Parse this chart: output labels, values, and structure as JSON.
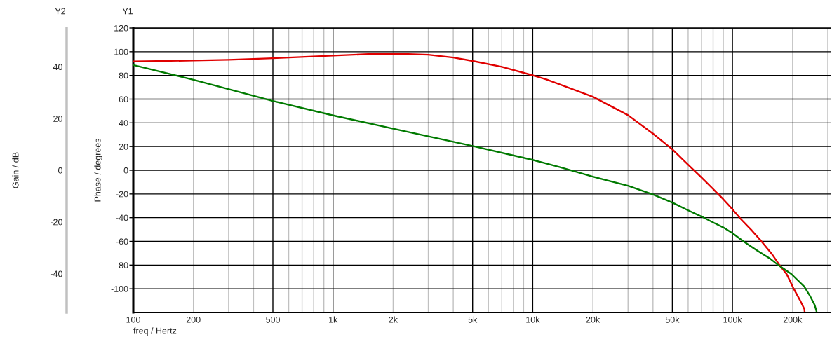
{
  "chart_data": {
    "type": "line",
    "xlabel": "freq / Hertz",
    "ylabel": "Phase / degrees",
    "y2label": "Gain / dB",
    "annotations": [
      "Y2",
      "Y1"
    ],
    "log": "x",
    "grid": true,
    "xlim": [
      100,
      310000
    ],
    "xticks": [
      100,
      200,
      500,
      {
        "value": 1000,
        "label": "1k"
      },
      {
        "value": 2000,
        "label": "2k"
      },
      {
        "value": 5000,
        "label": "5k"
      },
      {
        "value": 10000,
        "label": "10k"
      },
      {
        "value": 20000,
        "label": "20k"
      },
      {
        "value": 50000,
        "label": "50k"
      },
      {
        "value": 100000,
        "label": "100k"
      },
      {
        "value": 200000,
        "label": "200k"
      }
    ],
    "ylim": [
      -120,
      120
    ],
    "yticks": [
      -100,
      -80,
      -60,
      -40,
      -20,
      0,
      20,
      40,
      60,
      80,
      100,
      120
    ],
    "y2lim": [
      -55,
      55
    ],
    "y2ticks": [
      -40,
      -20,
      0,
      20,
      40
    ],
    "series": [
      {
        "color": "#e00000",
        "x": [
          100,
          200,
          300,
          500,
          1000,
          1500,
          2000,
          3000,
          4000,
          5000,
          7000,
          10000,
          11700,
          13700,
          20000,
          30000,
          40000,
          50000,
          60000,
          70000,
          80000,
          90000,
          100000,
          110000,
          125000,
          139000,
          157000,
          172000,
          187000,
          202000,
          217000,
          229000,
          230000
        ],
        "values": [
          91.8,
          92.6,
          93.2,
          94.5,
          96.7,
          98.0,
          98.4,
          97.5,
          95.1,
          92.2,
          87.3,
          80.1,
          76.6,
          72.4,
          62.0,
          46.5,
          30.9,
          17.7,
          4.7,
          -6.1,
          -15.8,
          -24.5,
          -32.9,
          -41.1,
          -50.8,
          -59.5,
          -70.3,
          -80.0,
          -87.8,
          -99.5,
          -109.1,
          -117.0,
          -120
        ]
      },
      {
        "color": "#007a00",
        "axis": "y2",
        "x": [
          100,
          200,
          500,
          1000,
          2000,
          5000,
          10000,
          11700,
          13700,
          20000,
          30000,
          40000,
          50000,
          60000,
          70000,
          81000,
          90000,
          100000,
          113500,
          131600,
          155000,
          172000,
          197000,
          229000,
          244000,
          258000,
          264000
        ],
        "values": [
          40.7,
          35.0,
          26.8,
          21.2,
          16.1,
          9.4,
          4.0,
          2.6,
          1.2,
          -2.5,
          -6.0,
          -9.4,
          -12.5,
          -15.5,
          -17.9,
          -20.4,
          -22.1,
          -24.3,
          -27.5,
          -30.8,
          -34.3,
          -37.0,
          -40.1,
          -45.0,
          -48.5,
          -52.1,
          -54.8
        ]
      }
    ]
  }
}
